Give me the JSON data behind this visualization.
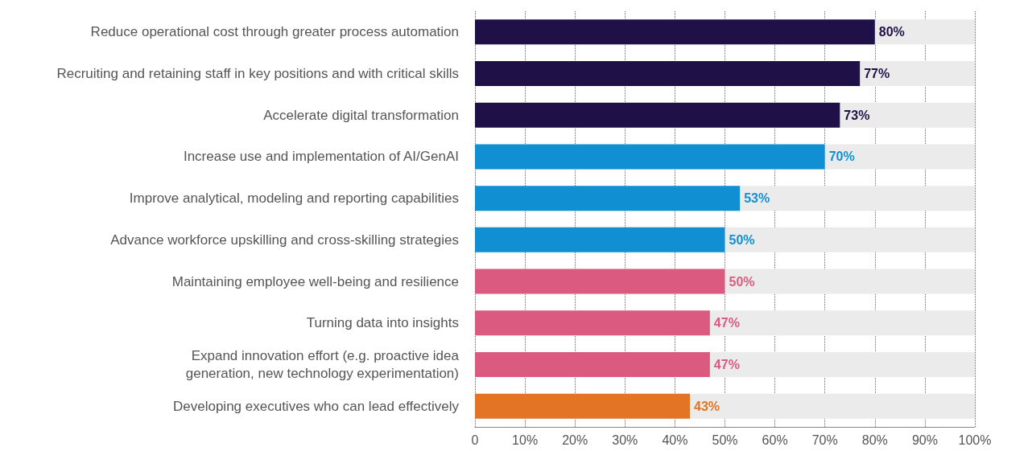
{
  "chart_data": {
    "type": "bar",
    "orientation": "horizontal",
    "categories": [
      "Reduce operational cost through greater process automation",
      "Recruiting and retaining staff in key positions and with critical skills",
      "Accelerate digital transformation",
      "Increase use and implementation of AI/GenAI",
      "Improve analytical, modeling and reporting capabilities",
      "Advance workforce upskilling and cross-skilling strategies",
      "Maintaining employee well-being and resilience",
      "Turning data into insights",
      "Expand innovation effort (e.g. proactive idea\ngeneration, new technology experimentation)",
      "Developing executives who can lead effectively"
    ],
    "values": [
      80,
      77,
      73,
      70,
      53,
      50,
      50,
      47,
      47,
      43
    ],
    "value_labels": [
      "80%",
      "77%",
      "73%",
      "70%",
      "53%",
      "50%",
      "50%",
      "47%",
      "47%",
      "43%"
    ],
    "colors": [
      "#1f1147",
      "#1f1147",
      "#1f1147",
      "#1090d3",
      "#1090d3",
      "#1090d3",
      "#db5b80",
      "#db5b80",
      "#db5b80",
      "#e37325"
    ],
    "xlim": [
      0,
      100
    ],
    "xticks": [
      0,
      {
        "value": 10,
        "label": "10%"
      },
      {
        "value": 20,
        "label": "20%"
      },
      {
        "value": 30,
        "label": "30%"
      },
      {
        "value": 40,
        "label": "40%"
      },
      {
        "value": 50,
        "label": "50%"
      },
      {
        "value": 60,
        "label": "60%"
      },
      {
        "value": 70,
        "label": "70%"
      },
      {
        "value": 80,
        "label": "80%"
      },
      {
        "value": 90,
        "label": "90%"
      },
      {
        "value": 100,
        "label": "100%"
      }
    ],
    "grid": "x"
  }
}
